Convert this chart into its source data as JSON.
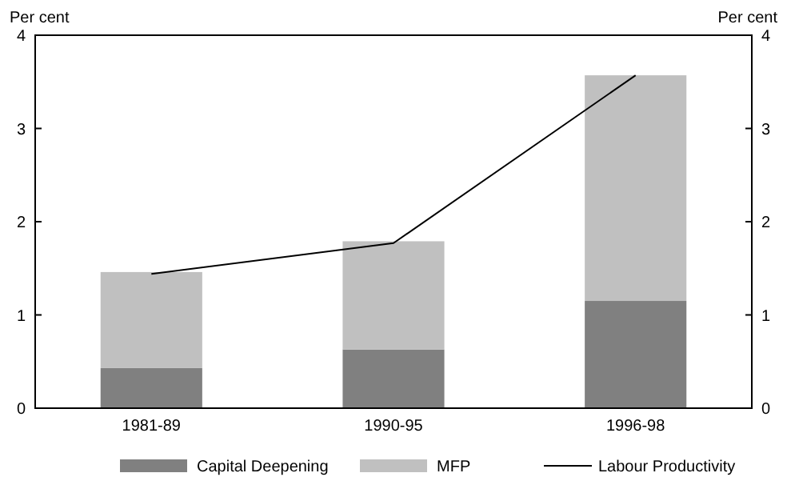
{
  "chart_data": {
    "type": "bar",
    "stacked": true,
    "categories": [
      "1981-89",
      "1990-95",
      "1996-98"
    ],
    "series": [
      {
        "name": "Capital Deepening",
        "color": "#808080",
        "values": [
          0.43,
          0.63,
          1.15
        ]
      },
      {
        "name": "MFP",
        "color": "#c0c0c0",
        "values": [
          1.03,
          1.16,
          2.42
        ]
      },
      {
        "name": "Labour Productivity",
        "type": "line",
        "color": "#000000",
        "values": [
          1.44,
          1.77,
          3.57
        ]
      }
    ],
    "ylabel": "Per cent",
    "y2label": "Per cent",
    "ylim": [
      0,
      4
    ],
    "yticks": [
      0,
      1,
      2,
      3,
      4
    ],
    "y2lim": [
      0,
      4
    ],
    "y2ticks": [
      0,
      1,
      2,
      3,
      4
    ],
    "grid": false,
    "legend": "bottom",
    "marker": "none",
    "line_style": "solid"
  }
}
